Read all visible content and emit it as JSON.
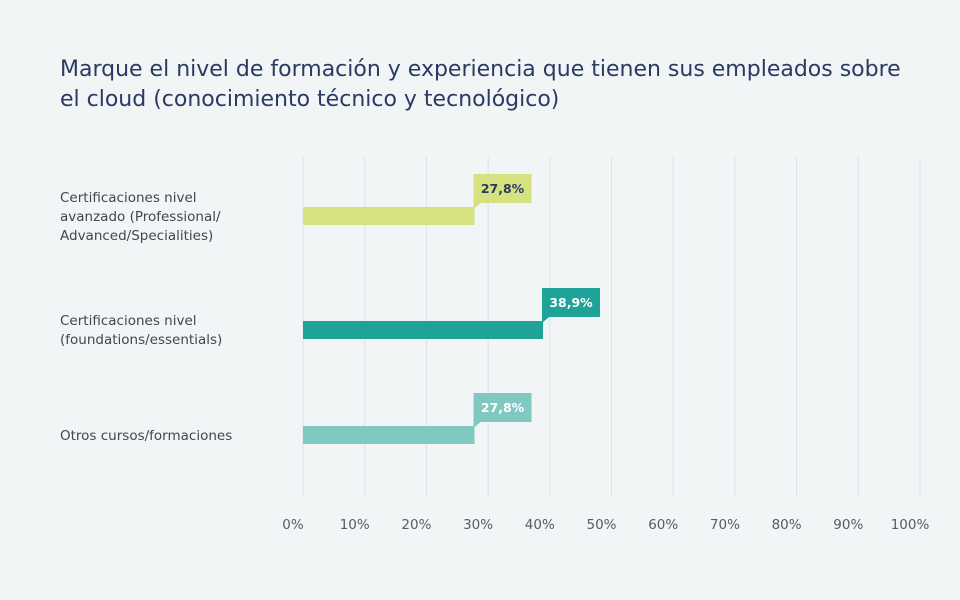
{
  "chart_data": {
    "type": "bar",
    "orientation": "horizontal",
    "title": "Marque el nivel de formación y experiencia que tienen sus empleados sobre el cloud (conocimiento técnico y tecnológico)",
    "categories": [
      [
        "Certificaciones nivel",
        "avanzado (Professional/",
        "Advanced/Specialities)"
      ],
      [
        "Certificaciones nivel",
        "(foundations/essentials)"
      ],
      [
        "Otros cursos/formaciones"
      ]
    ],
    "values": [
      27.8,
      38.9,
      27.8
    ],
    "value_labels": [
      "27,8%",
      "38,9%",
      "27,8%"
    ],
    "colors": [
      "#d6e180",
      "#1fa398",
      "#80c9c3"
    ],
    "label_text_colors": [
      "#2b3a63",
      "#ffffff",
      "#ffffff"
    ],
    "xlim": [
      0,
      100
    ],
    "xticks": [
      0,
      10,
      20,
      30,
      40,
      50,
      60,
      70,
      80,
      90,
      100
    ],
    "xtick_labels": [
      "0%",
      "10%",
      "20%",
      "30%",
      "40%",
      "50%",
      "60%",
      "70%",
      "80%",
      "90%",
      "100%"
    ],
    "grid": true,
    "xlabel": "",
    "ylabel": ""
  }
}
